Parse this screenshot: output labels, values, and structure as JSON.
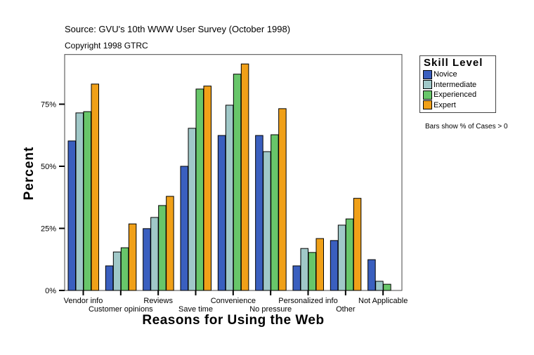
{
  "chart_data": {
    "type": "bar",
    "source": "Source: GVU's 10th WWW User Survey (October 1998)",
    "copyright": "Copyright 1998 GTRC",
    "xlabel": "Reasons for Using the Web",
    "ylabel": "Percent",
    "ylim": [
      0,
      95
    ],
    "yticks": [
      0,
      25,
      50,
      75
    ],
    "ytick_labels": [
      "0%",
      "25%",
      "50%",
      "75%"
    ],
    "grid": false,
    "legend_title": "Skill Level",
    "legend_position": "right",
    "note": "Bars show % of Cases > 0",
    "categories": [
      "Vendor info",
      "Customer opinions",
      "Reviews",
      "Save time",
      "Convenience",
      "No pressure",
      "Personalized info",
      "Other",
      "Not Applicable"
    ],
    "series": [
      {
        "name": "Novice",
        "color": "#3a5fbf",
        "values": [
          60.2,
          9.9,
          24.9,
          50.0,
          62.4,
          62.4,
          9.9,
          20.1,
          12.4
        ]
      },
      {
        "name": "Intermediate",
        "color": "#a0c8c8",
        "values": [
          71.5,
          15.5,
          29.4,
          65.3,
          74.6,
          55.9,
          16.9,
          26.3,
          3.7
        ]
      },
      {
        "name": "Experienced",
        "color": "#68c66a",
        "values": [
          72.0,
          17.2,
          34.2,
          81.1,
          87.1,
          62.7,
          15.3,
          28.8,
          2.5
        ]
      },
      {
        "name": "Expert",
        "color": "#f0a018",
        "values": [
          83.1,
          26.8,
          37.9,
          82.3,
          91.2,
          73.2,
          20.9,
          37.1,
          0
        ]
      }
    ]
  }
}
